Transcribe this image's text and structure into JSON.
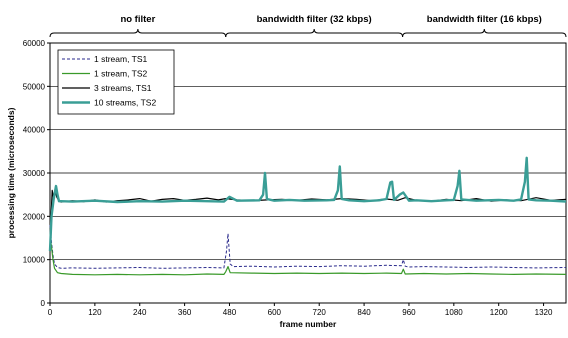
{
  "chart_data": {
    "type": "line",
    "title": "",
    "xlabel": "frame number",
    "ylabel": "processing time (microseconds)",
    "xlim": [
      0,
      1380
    ],
    "ylim": [
      0,
      60000
    ],
    "xticks": [
      0,
      120,
      240,
      360,
      480,
      600,
      720,
      840,
      960,
      1080,
      1200,
      1320
    ],
    "yticks": [
      0,
      10000,
      20000,
      30000,
      40000,
      50000,
      60000
    ],
    "grid": "horizontal",
    "legend_position": "top-left",
    "sections": [
      {
        "label": "no filter",
        "from": 0,
        "to": 470
      },
      {
        "label": "bandwidth filter (32 kbps)",
        "from": 470,
        "to": 943
      },
      {
        "label": "bandwidth filter (16 kbps)",
        "from": 943,
        "to": 1380
      }
    ],
    "series": [
      {
        "name": "1 stream, TS1",
        "color": "#2a2a8c",
        "style": "dashed",
        "x": [
          0,
          4,
          8,
          12,
          20,
          30,
          60,
          120,
          180,
          240,
          300,
          360,
          420,
          465,
          472,
          476,
          482,
          490,
          540,
          600,
          660,
          720,
          780,
          840,
          900,
          940,
          945,
          950,
          958,
          1000,
          1060,
          1120,
          1180,
          1240,
          1300,
          1380
        ],
        "y": [
          18000,
          14000,
          11000,
          9000,
          8200,
          8000,
          8100,
          8000,
          8100,
          8200,
          8000,
          8100,
          8200,
          8100,
          12000,
          16000,
          9000,
          8400,
          8500,
          8300,
          8500,
          8400,
          8600,
          8500,
          8700,
          8600,
          10000,
          8500,
          8300,
          8400,
          8300,
          8200,
          8300,
          8200,
          8100,
          8200
        ]
      },
      {
        "name": "1 stream, TS2",
        "color": "#3a9a2a",
        "style": "solid",
        "x": [
          0,
          4,
          8,
          12,
          20,
          30,
          60,
          120,
          180,
          240,
          300,
          360,
          420,
          465,
          470,
          476,
          482,
          540,
          600,
          660,
          720,
          780,
          840,
          900,
          940,
          945,
          950,
          1000,
          1060,
          1120,
          1180,
          1240,
          1300,
          1380
        ],
        "y": [
          16000,
          13000,
          10000,
          8000,
          7000,
          6800,
          6600,
          6500,
          6600,
          6500,
          6600,
          6500,
          6700,
          6600,
          7200,
          8400,
          7000,
          6900,
          6800,
          6900,
          6800,
          6900,
          6800,
          6900,
          6800,
          7800,
          6700,
          6800,
          6700,
          6800,
          6700,
          6600,
          6700,
          6600
        ]
      },
      {
        "name": "3 streams, TS1",
        "color": "#000000",
        "style": "solid",
        "x": [
          0,
          3,
          6,
          10,
          14,
          18,
          24,
          30,
          60,
          90,
          120,
          150,
          180,
          210,
          240,
          270,
          300,
          330,
          360,
          390,
          420,
          450,
          470,
          500,
          540,
          580,
          620,
          660,
          700,
          740,
          780,
          820,
          860,
          900,
          930,
          950,
          980,
          1020,
          1060,
          1100,
          1140,
          1180,
          1220,
          1260,
          1300,
          1340,
          1380
        ],
        "y": [
          13000,
          20000,
          26000,
          24000,
          26000,
          24500,
          23500,
          23300,
          23600,
          23400,
          23800,
          23300,
          23600,
          23800,
          24100,
          23500,
          23900,
          24100,
          23700,
          23900,
          24200,
          23800,
          24100,
          23800,
          23600,
          23800,
          23900,
          23700,
          24000,
          23800,
          24100,
          23900,
          23600,
          24000,
          23700,
          24300,
          23700,
          23500,
          23900,
          23600,
          24100,
          23500,
          23800,
          23600,
          24300,
          23700,
          23900
        ]
      },
      {
        "name": "10 streams, TS2",
        "color": "#3a9e96",
        "style": "solid-thick",
        "x": [
          0,
          4,
          10,
          16,
          20,
          24,
          30,
          60,
          120,
          180,
          240,
          300,
          360,
          420,
          465,
          480,
          500,
          560,
          570,
          575,
          580,
          600,
          640,
          680,
          740,
          760,
          770,
          775,
          780,
          800,
          840,
          880,
          900,
          910,
          915,
          920,
          935,
          945,
          960,
          980,
          1020,
          1060,
          1080,
          1090,
          1095,
          1100,
          1140,
          1200,
          1240,
          1260,
          1270,
          1275,
          1280,
          1300,
          1340,
          1380
        ],
        "y": [
          12000,
          20000,
          24000,
          27000,
          25000,
          23500,
          23500,
          23400,
          23600,
          23300,
          23500,
          23400,
          23600,
          23500,
          23400,
          24500,
          23600,
          23700,
          25000,
          30000,
          24000,
          23600,
          23800,
          23600,
          23700,
          23800,
          26000,
          31500,
          24000,
          23700,
          23500,
          23700,
          24000,
          27800,
          28000,
          23800,
          25000,
          25500,
          23600,
          23700,
          23500,
          23700,
          23800,
          27000,
          30500,
          23900,
          23600,
          23800,
          23600,
          23900,
          28000,
          33500,
          23900,
          23700,
          23600,
          23400
        ]
      }
    ]
  }
}
